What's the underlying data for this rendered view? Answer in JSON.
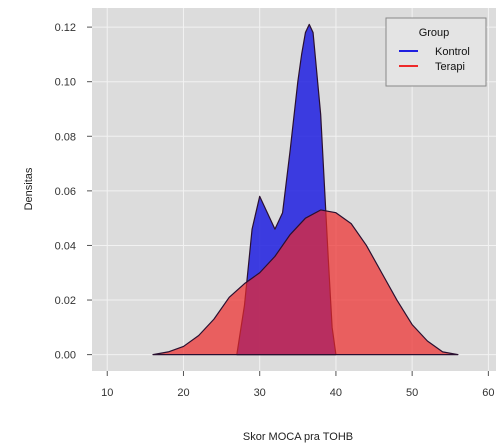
{
  "chart_data": {
    "type": "area",
    "xlabel": "Skor MOCA pra TOHB",
    "ylabel": "Densitas",
    "xlim": [
      8,
      61
    ],
    "ylim": [
      -0.006,
      0.127
    ],
    "xticks": [
      10,
      20,
      30,
      40,
      50,
      60
    ],
    "yticks": [
      0.0,
      0.02,
      0.04,
      0.06,
      0.08,
      0.1,
      0.12
    ],
    "ytick_labels": [
      "0.00",
      "0.02",
      "0.04",
      "0.06",
      "0.08",
      "0.10",
      "0.12"
    ],
    "grid": true,
    "legend": {
      "title": "Group",
      "position": "top-right"
    },
    "series": [
      {
        "name": "Kontrol",
        "color": "#1f1fe0",
        "x": [
          27,
          28,
          29,
          30,
          31,
          32,
          33,
          34,
          35,
          35.5,
          36,
          36.5,
          37,
          38,
          39,
          39.5,
          40
        ],
        "y": [
          0.0,
          0.018,
          0.046,
          0.058,
          0.052,
          0.046,
          0.052,
          0.075,
          0.1,
          0.11,
          0.118,
          0.121,
          0.118,
          0.088,
          0.035,
          0.01,
          0.0
        ]
      },
      {
        "name": "Terapi",
        "color": "#ee2a2a",
        "x": [
          16,
          18,
          20,
          22,
          24,
          26,
          28,
          30,
          32,
          34,
          36,
          38,
          40,
          42,
          44,
          46,
          48,
          50,
          52,
          54,
          56
        ],
        "y": [
          0.0,
          0.001,
          0.003,
          0.007,
          0.013,
          0.021,
          0.026,
          0.03,
          0.036,
          0.044,
          0.05,
          0.053,
          0.052,
          0.048,
          0.04,
          0.03,
          0.02,
          0.011,
          0.005,
          0.001,
          0.0
        ]
      }
    ]
  }
}
